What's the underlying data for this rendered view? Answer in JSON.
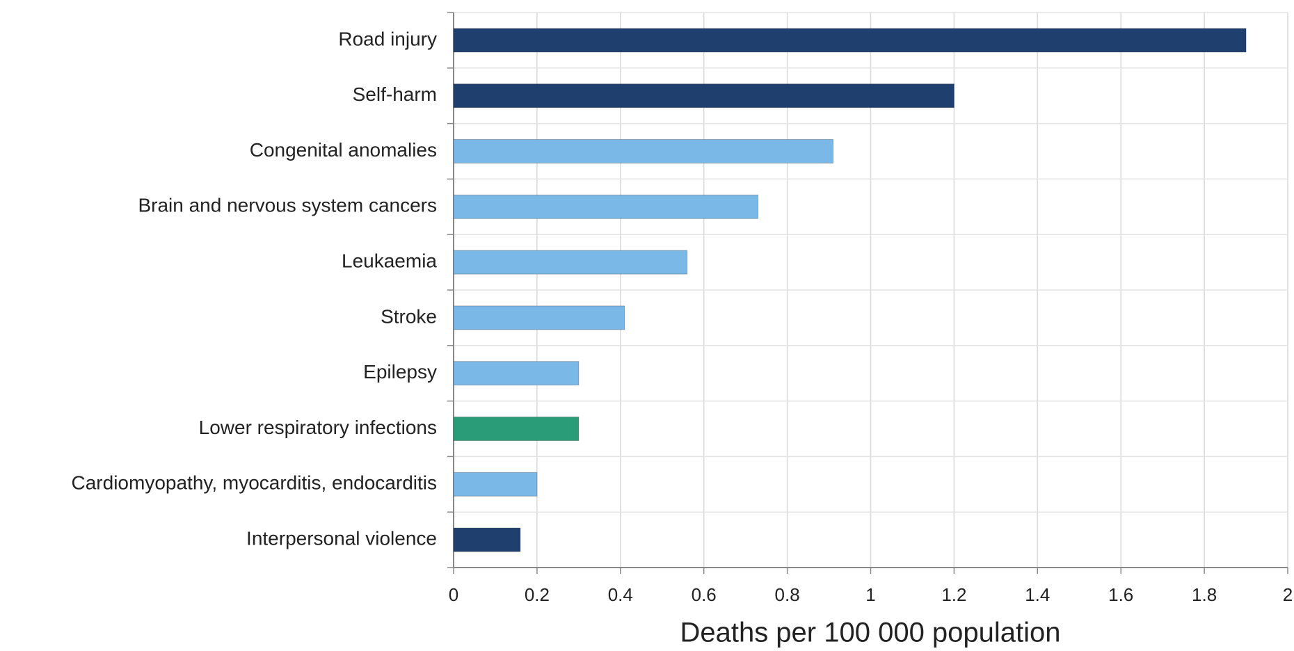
{
  "chart_data": {
    "type": "hbar",
    "x_label": "Deaths per 100 000 population",
    "categories": [
      "Road injury",
      "Self-harm",
      "Congenital anomalies",
      "Brain and nervous system cancers",
      "Leukaemia",
      "Stroke",
      "Epilepsy",
      "Lower respiratory infections",
      "Cardiomyopathy, myocarditis, endocarditis",
      "Interpersonal violence"
    ],
    "values": [
      1.9,
      1.2,
      0.91,
      0.73,
      0.56,
      0.41,
      0.3,
      0.3,
      0.2,
      0.16
    ],
    "colors": [
      "#1f3f6e",
      "#1f3f6e",
      "#7ab8e8",
      "#7ab8e8",
      "#7ab8e8",
      "#7ab8e8",
      "#7ab8e8",
      "#2a9d78",
      "#7ab8e8",
      "#1f3f6e"
    ],
    "xlim": [
      0,
      2
    ],
    "xticks": [
      0,
      0.2,
      0.4,
      0.6,
      0.8,
      1,
      1.2,
      1.4,
      1.6,
      1.8,
      2
    ],
    "grid": true
  }
}
